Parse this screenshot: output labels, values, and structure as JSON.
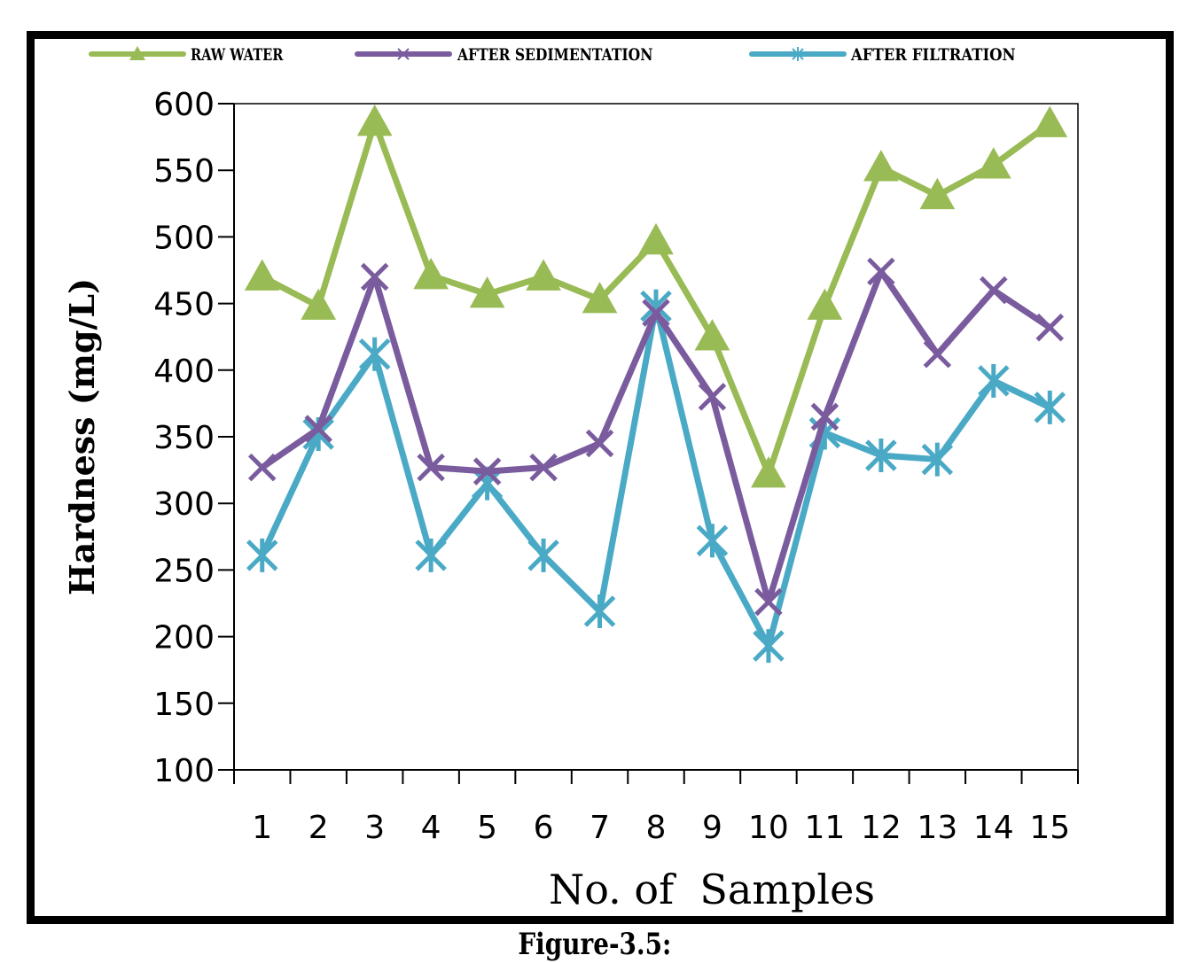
{
  "caption": "Figure-3.5:",
  "colors": {
    "raw_water": "#99bb55",
    "after_sedimentation": "#7a5c9e",
    "after_filtration": "#4aaac6",
    "axis": "#000000"
  },
  "chart_data": {
    "type": "line",
    "xlabel": "No. of  Samples",
    "ylabel": "Hardness (mg/L)",
    "ylim": [
      100,
      600
    ],
    "yticks": [
      100,
      150,
      200,
      250,
      300,
      350,
      400,
      450,
      500,
      550,
      600
    ],
    "categories": [
      "1",
      "2",
      "3",
      "4",
      "5",
      "6",
      "7",
      "8",
      "9",
      "10",
      "11",
      "12",
      "13",
      "14",
      "15"
    ],
    "grid": false,
    "legend_position": "top",
    "series": [
      {
        "name": "RAW WATER",
        "key": "raw_water",
        "marker": "triangle",
        "values": [
          470,
          448,
          586,
          471,
          457,
          470,
          453,
          497,
          425,
          322,
          448,
          552,
          531,
          554,
          585
        ]
      },
      {
        "name": "AFTER SEDIMENTATION",
        "key": "after_sedimentation",
        "marker": "x",
        "values": [
          327,
          356,
          470,
          327,
          324,
          327,
          345,
          443,
          380,
          226,
          365,
          474,
          412,
          460,
          432
        ]
      },
      {
        "name": "AFTER FILTRATION",
        "key": "after_filtration",
        "marker": "star",
        "values": [
          261,
          352,
          412,
          261,
          315,
          261,
          219,
          448,
          272,
          193,
          353,
          336,
          333,
          392,
          372
        ]
      }
    ]
  }
}
